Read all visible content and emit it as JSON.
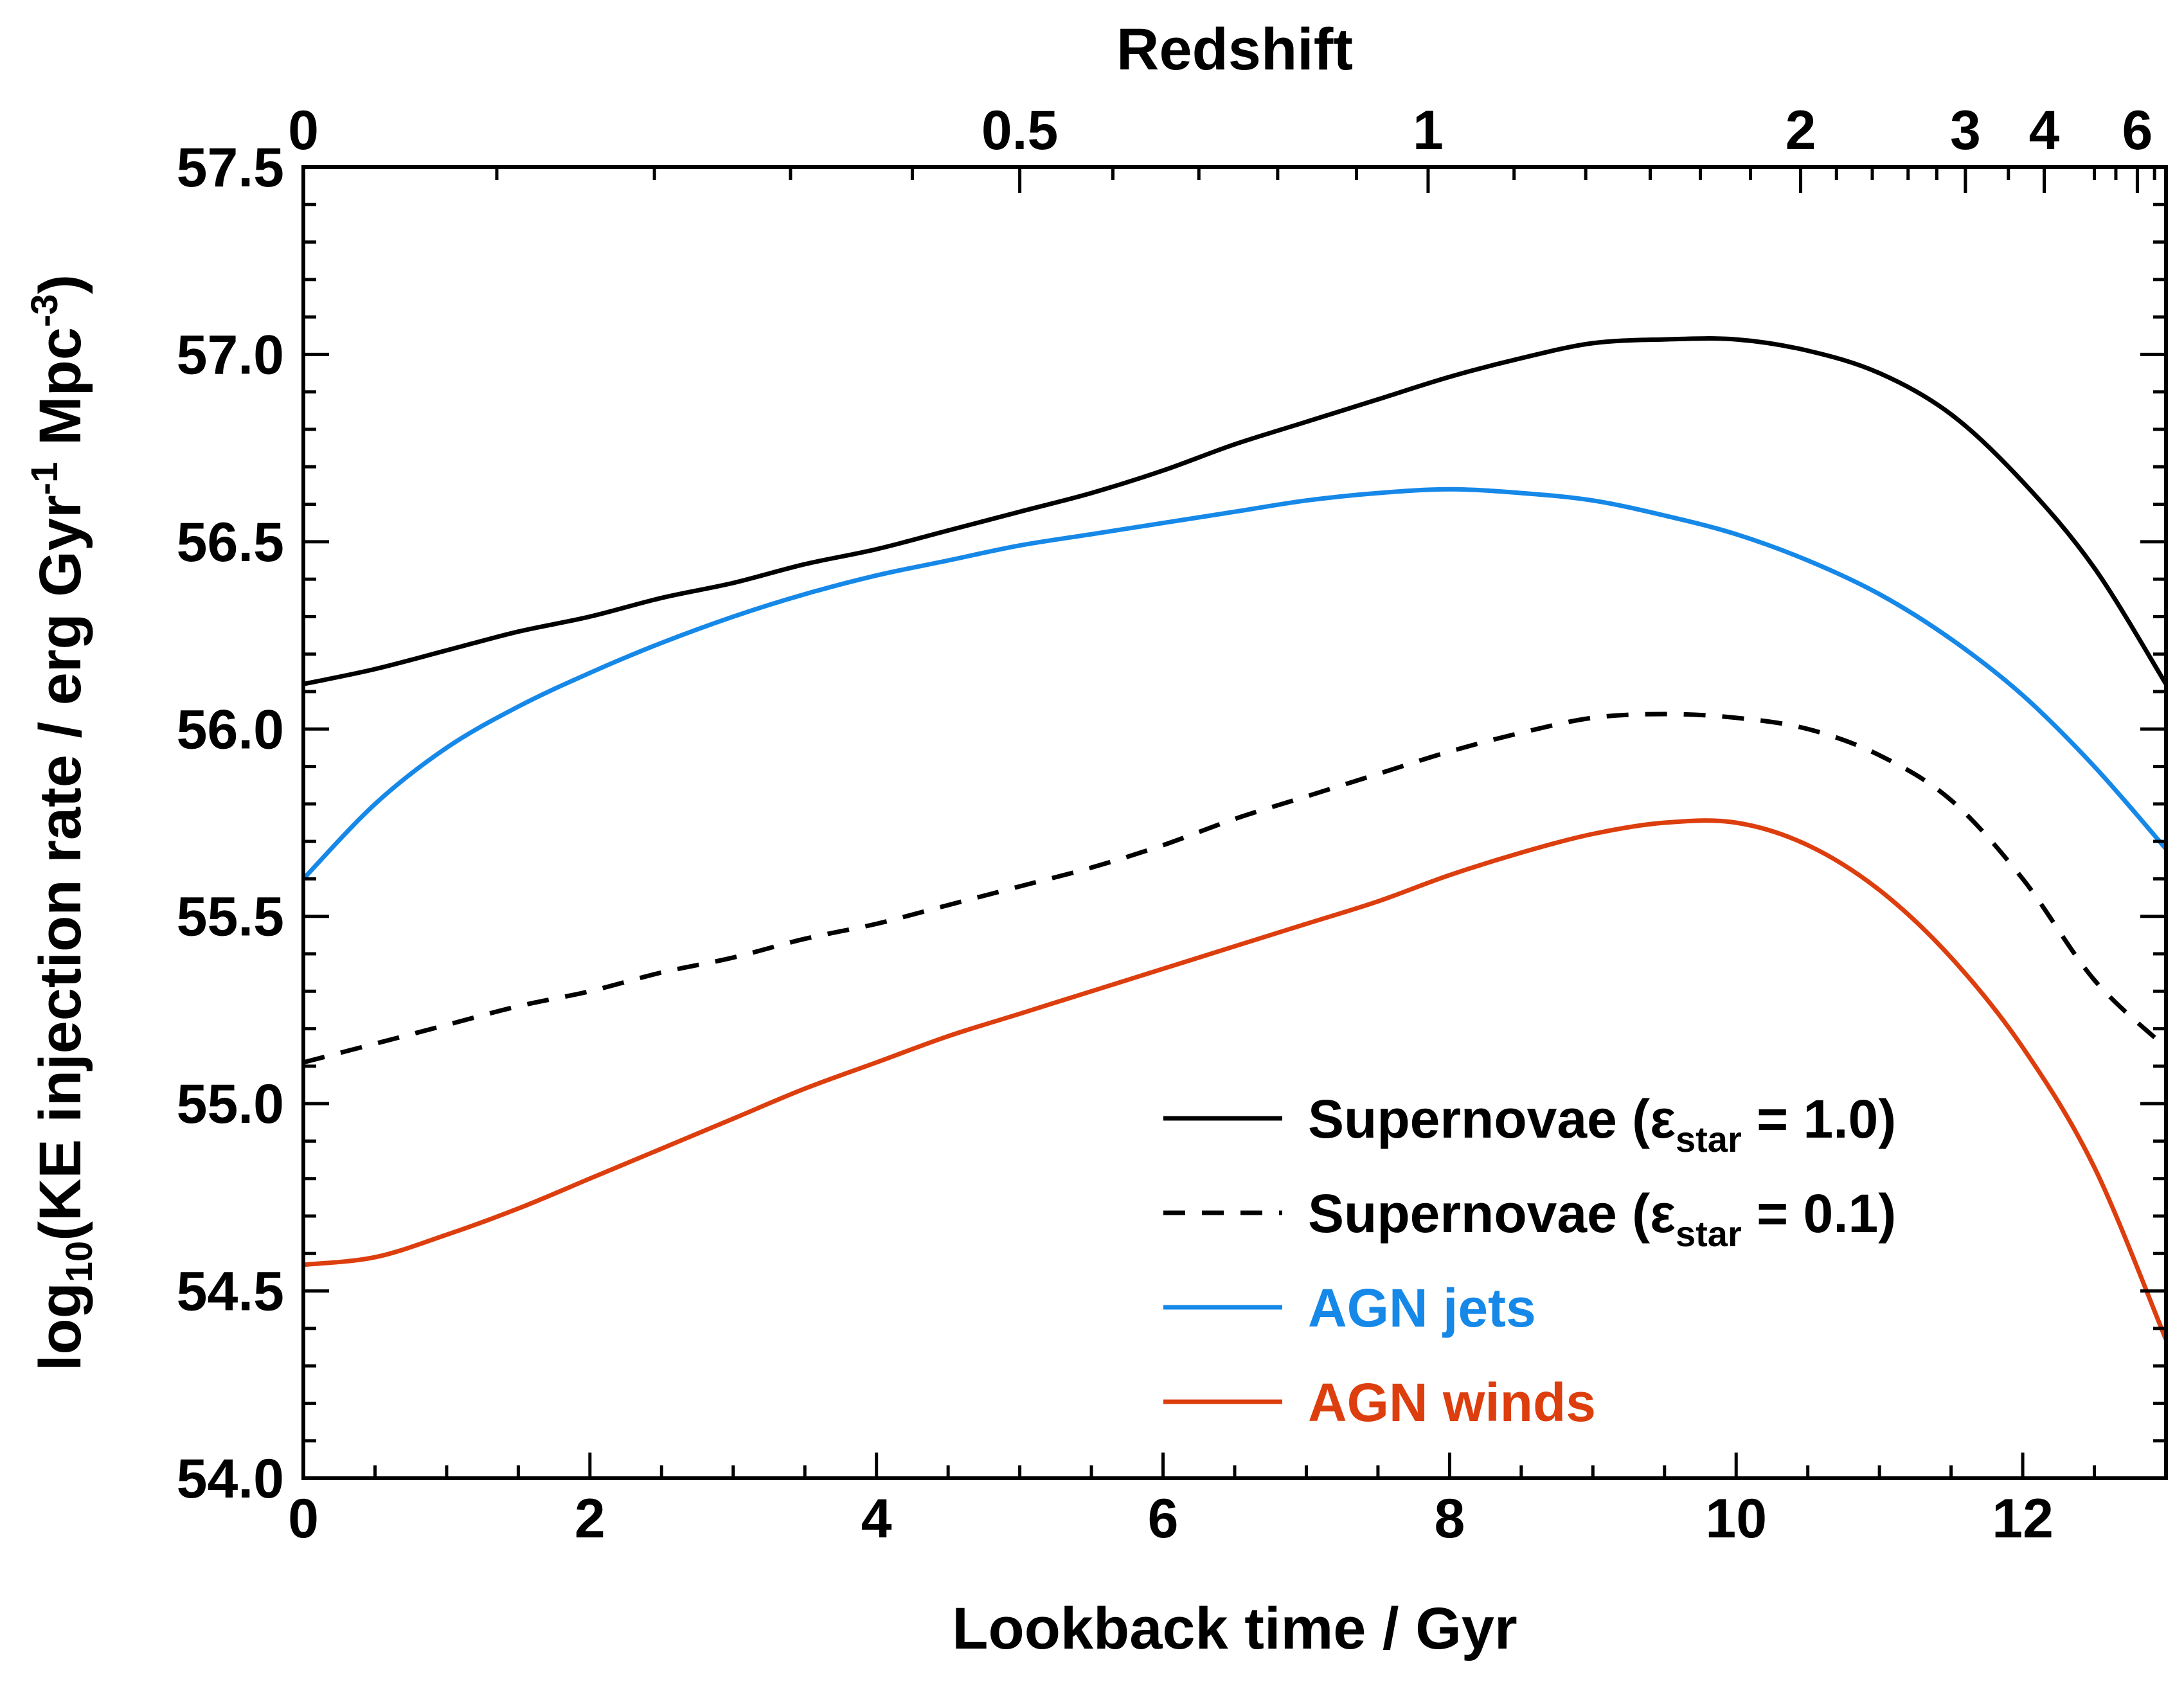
{
  "chart_data": {
    "type": "line",
    "xlabel": "Lookback time / Gyr",
    "ylabel": {
      "parts": [
        {
          "t": "log",
          "sub": false
        },
        {
          "t": "10",
          "sub": true
        },
        {
          "t": "(KE injection rate / erg Gyr",
          "sub": false
        },
        {
          "t": "-1",
          "sup": true
        },
        {
          "t": " Mpc",
          "sub": false
        },
        {
          "t": "-3",
          "sup": true
        },
        {
          "t": ")",
          "sub": false
        }
      ]
    },
    "top_axis_label": "Redshift",
    "xlim": [
      0,
      13
    ],
    "ylim": [
      54.0,
      57.5
    ],
    "x_ticks": [
      0,
      2,
      4,
      6,
      8,
      10,
      12
    ],
    "x_tick_labels": [
      "0",
      "2",
      "4",
      "6",
      "8",
      "10",
      "12"
    ],
    "y_ticks": [
      54.0,
      54.5,
      55.0,
      55.5,
      56.0,
      56.5,
      57.0,
      57.5
    ],
    "y_tick_labels": [
      "54.0",
      "54.5",
      "55.0",
      "55.5",
      "56.0",
      "56.5",
      "57.0",
      "57.5"
    ],
    "top_ticks": [
      {
        "label": "0",
        "t": 0.0
      },
      {
        "label": "0.5",
        "t": 5.0
      },
      {
        "label": "1",
        "t": 7.85
      },
      {
        "label": "2",
        "t": 10.45
      },
      {
        "label": "3",
        "t": 11.6
      },
      {
        "label": "4",
        "t": 12.15
      },
      {
        "label": "6",
        "t": 12.8
      }
    ],
    "top_minor_ticks": [
      1.35,
      2.45,
      3.4,
      4.25,
      5.65,
      6.25,
      6.8,
      7.35,
      8.45,
      8.95,
      9.4,
      9.75,
      10.1,
      10.7,
      10.95,
      11.2,
      11.4,
      11.9,
      12.5,
      12.65,
      12.92
    ],
    "legend_position": "bottom-right",
    "series": [
      {
        "name": "Supernovae (εstar = 1.0)",
        "color": "#000000",
        "dash": "solid",
        "x": [
          0,
          0.5,
          1,
          1.5,
          2,
          2.5,
          3,
          3.5,
          4,
          4.5,
          5,
          5.5,
          6,
          6.5,
          7,
          7.5,
          8,
          8.5,
          9,
          9.5,
          10,
          10.5,
          11,
          11.5,
          12,
          12.5,
          13
        ],
        "y": [
          56.12,
          56.16,
          56.21,
          56.26,
          56.3,
          56.35,
          56.39,
          56.44,
          56.48,
          56.53,
          56.58,
          56.63,
          56.69,
          56.76,
          56.82,
          56.88,
          56.94,
          56.99,
          57.03,
          57.04,
          57.04,
          57.01,
          56.95,
          56.84,
          56.66,
          56.43,
          56.12
        ]
      },
      {
        "name": "Supernovae (εstar = 0.1)",
        "color": "#000000",
        "dash": "dashed",
        "x": [
          0,
          0.5,
          1,
          1.5,
          2,
          2.5,
          3,
          3.5,
          4,
          4.5,
          5,
          5.5,
          6,
          6.5,
          7,
          7.5,
          8,
          8.5,
          9,
          9.5,
          10,
          10.5,
          11,
          11.5,
          12,
          12.5,
          13
        ],
        "y": [
          55.11,
          55.16,
          55.21,
          55.26,
          55.3,
          55.35,
          55.39,
          55.44,
          55.48,
          55.53,
          55.58,
          55.63,
          55.69,
          55.76,
          55.82,
          55.88,
          55.94,
          55.99,
          56.03,
          56.04,
          56.03,
          56.0,
          55.93,
          55.81,
          55.6,
          55.33,
          55.15
        ]
      },
      {
        "name": "AGN jets",
        "color": "#1688e8",
        "dash": "solid",
        "x": [
          0,
          0.5,
          1,
          1.5,
          2,
          2.5,
          3,
          3.5,
          4,
          4.5,
          5,
          5.5,
          6,
          6.5,
          7,
          7.5,
          8,
          8.5,
          9,
          9.5,
          10,
          10.5,
          11,
          11.5,
          12,
          12.5,
          13
        ],
        "y": [
          55.6,
          55.8,
          55.95,
          56.06,
          56.15,
          56.23,
          56.3,
          56.36,
          56.41,
          56.45,
          56.49,
          56.52,
          56.55,
          56.58,
          56.61,
          56.63,
          56.64,
          56.63,
          56.61,
          56.57,
          56.52,
          56.45,
          56.36,
          56.24,
          56.09,
          55.9,
          55.68
        ]
      },
      {
        "name": "AGN winds",
        "color": "#dd3e0e",
        "dash": "solid",
        "x": [
          0,
          0.5,
          1,
          1.5,
          2,
          2.5,
          3,
          3.5,
          4,
          4.5,
          5,
          5.5,
          6,
          6.5,
          7,
          7.5,
          8,
          8.5,
          9,
          9.5,
          10,
          10.5,
          11,
          11.5,
          12,
          12.5,
          13
        ],
        "y": [
          54.57,
          54.59,
          54.65,
          54.72,
          54.8,
          54.88,
          54.96,
          55.04,
          55.11,
          55.18,
          55.24,
          55.3,
          55.36,
          55.42,
          55.48,
          55.54,
          55.61,
          55.67,
          55.72,
          55.75,
          55.75,
          55.69,
          55.57,
          55.39,
          55.15,
          54.83,
          54.37
        ]
      }
    ],
    "legend": [
      {
        "main": "Supernovae (",
        "greek": "ε",
        "sub": "star",
        "tail": " = 1.0)",
        "color": "#000000",
        "dash": "solid",
        "text_color": "#000000"
      },
      {
        "main": "Supernovae (",
        "greek": "ε",
        "sub": "star",
        "tail": " = 0.1)",
        "color": "#000000",
        "dash": "dashed",
        "text_color": "#000000"
      },
      {
        "main": "AGN jets",
        "greek": "",
        "sub": "",
        "tail": "",
        "color": "#1688e8",
        "dash": "solid",
        "text_color": "#1688e8"
      },
      {
        "main": "AGN winds",
        "greek": "",
        "sub": "",
        "tail": "",
        "color": "#dd3e0e",
        "dash": "solid",
        "text_color": "#dd3e0e"
      }
    ]
  }
}
